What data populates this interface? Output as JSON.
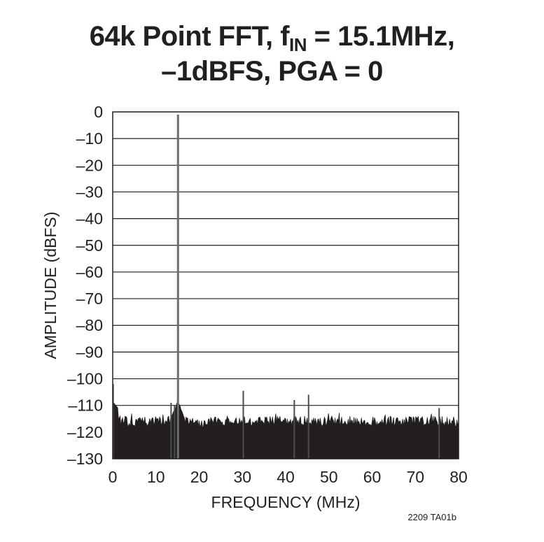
{
  "chart_data": {
    "type": "line",
    "title_prefix": "64k Point FFT, f",
    "title_subscript": "IN",
    "title_suffix": " = 15.1MHz,",
    "subtitle": "–1dBFS, PGA = 0",
    "xlabel": "FREQUENCY (MHz)",
    "ylabel": "AMPLITUDE (dBFS)",
    "xlim": [
      0,
      80
    ],
    "ylim": [
      -130,
      0
    ],
    "x_ticks": [
      0,
      10,
      20,
      30,
      40,
      50,
      60,
      70,
      80
    ],
    "x_tick_labels": [
      "0",
      "10",
      "20",
      "30",
      "40",
      "50",
      "60",
      "70",
      "80"
    ],
    "y_ticks": [
      0,
      -10,
      -20,
      -30,
      -40,
      -50,
      -60,
      -70,
      -80,
      -90,
      -100,
      -110,
      -120,
      -130
    ],
    "y_tick_labels": [
      "0",
      "–10",
      "–20",
      "–30",
      "–40",
      "–50",
      "–60",
      "–70",
      "–80",
      "–90",
      "–100",
      "–110",
      "–120",
      "–130"
    ],
    "grid": "horizontal",
    "noise_floor_dbfs": [
      -118,
      -114
    ],
    "peaks": [
      {
        "x": 0.1,
        "y": -102
      },
      {
        "x": 13.5,
        "y": -109
      },
      {
        "x": 14.3,
        "y": -110
      },
      {
        "x": 15.1,
        "y": -1
      },
      {
        "x": 30.2,
        "y": -104.5
      },
      {
        "x": 42.0,
        "y": -108
      },
      {
        "x": 45.3,
        "y": -106
      },
      {
        "x": 75.5,
        "y": -111
      }
    ],
    "figure_code": "2209 TA01b"
  }
}
